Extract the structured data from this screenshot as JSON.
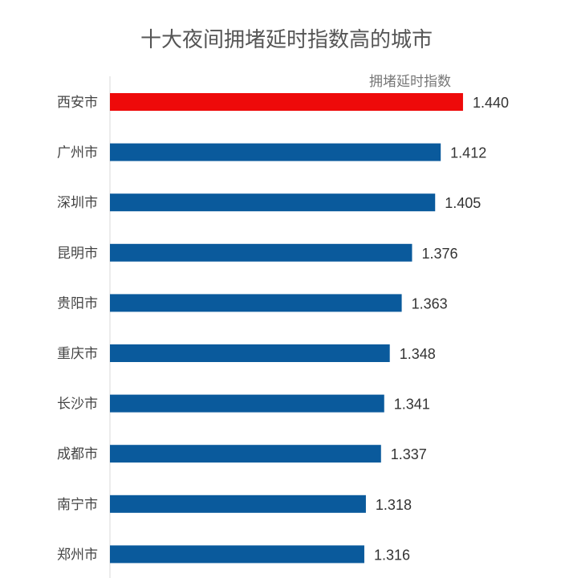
{
  "chart_data": {
    "type": "bar",
    "orientation": "horizontal",
    "title": "十大夜间拥堵延时指数高的城市",
    "legend": "拥堵延时指数",
    "legend_placement": "top-right",
    "categories": [
      "西安市",
      "广州市",
      "深圳市",
      "昆明市",
      "贵阳市",
      "重庆市",
      "长沙市",
      "成都市",
      "南宁市",
      "郑州市"
    ],
    "values": [
      1.44,
      1.412,
      1.405,
      1.376,
      1.363,
      1.348,
      1.341,
      1.337,
      1.318,
      1.316
    ],
    "value_labels": [
      "1.440",
      "1.412",
      "1.405",
      "1.376",
      "1.363",
      "1.348",
      "1.341",
      "1.337",
      "1.318",
      "1.316"
    ],
    "highlight_color": "#EE0A0A",
    "bar_color": "#0A5A9C",
    "grid": false
  }
}
